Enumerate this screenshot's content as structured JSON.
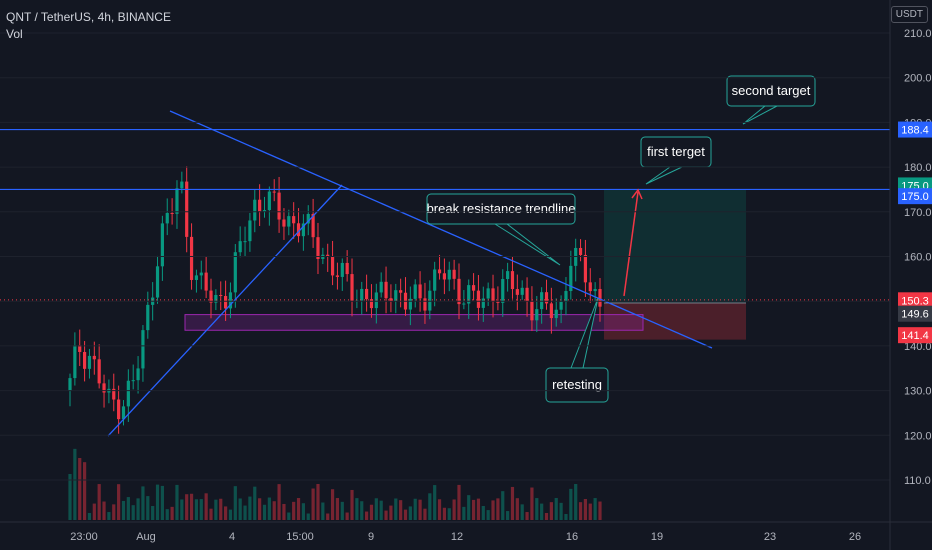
{
  "header": {
    "title": "QNT / TetherUS, 4h, BINANCE",
    "volume_label": "Vol",
    "currency_button": "USDT"
  },
  "chart_data": {
    "type": "candlestick",
    "y_axis_ticks": [
      110.0,
      120.0,
      130.0,
      140.0,
      150.0,
      160.0,
      170.0,
      180.0,
      190.0,
      200.0,
      210.0
    ],
    "y_range": [
      100,
      212
    ],
    "x_tick_labels": [
      "23:00",
      "Aug",
      "4",
      "15:00",
      "9",
      "12",
      "16",
      "19",
      "23",
      "26"
    ],
    "price_tags": [
      {
        "value": "188.4",
        "color": "#2962ff"
      },
      {
        "value": "175.0",
        "color": "#089981"
      },
      {
        "value": "175.0",
        "color": "#2962ff"
      },
      {
        "value": "150.3",
        "color": "#f23645"
      },
      {
        "value": "149.6",
        "color": "#363a45"
      },
      {
        "value": "141.4",
        "color": "#f23645"
      }
    ],
    "horizontal_levels": [
      188.4,
      175.0
    ],
    "support_zone": [
      143.5,
      147.0
    ],
    "position": {
      "entry": 149.6,
      "target": 175.0,
      "stop": 141.4
    },
    "annotations": [
      "second target",
      "first terget",
      "break resistance trendline",
      "retesting"
    ],
    "colors": {
      "up": "#089981",
      "down": "#f23645",
      "line": "#2962ff",
      "zone": "#9c27b0"
    }
  }
}
